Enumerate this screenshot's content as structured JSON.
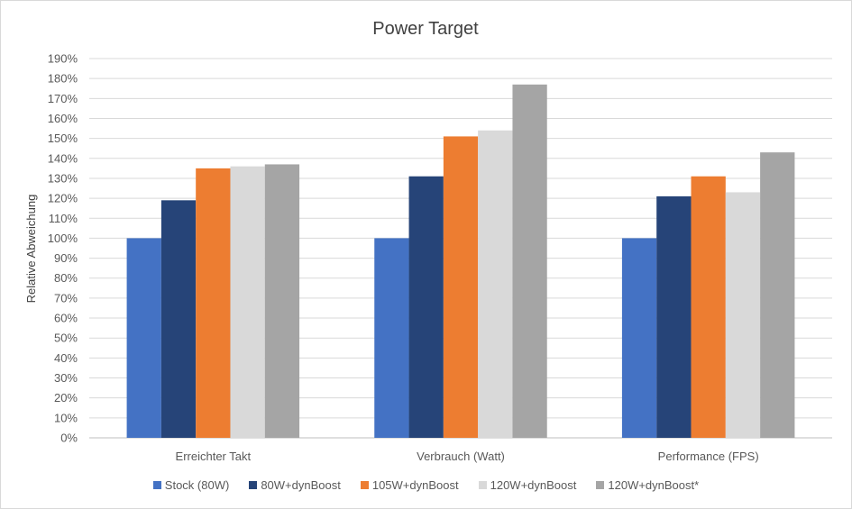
{
  "chart_data": {
    "type": "bar",
    "title": "Power Target",
    "xlabel": "",
    "ylabel": "Relative Abweichung",
    "ylim": [
      0,
      190
    ],
    "ytick_step": 10,
    "ytick_suffix": "%",
    "grid": true,
    "legend_position": "bottom",
    "categories": [
      "Erreichter Takt",
      "Verbrauch (Watt)",
      "Performance (FPS)"
    ],
    "series": [
      {
        "name": "Stock (80W)",
        "color": "#4472c4",
        "values": [
          100,
          100,
          100
        ]
      },
      {
        "name": "80W+dynBoost",
        "color": "#264478",
        "values": [
          119,
          131,
          121
        ]
      },
      {
        "name": "105W+dynBoost",
        "color": "#ed7d31",
        "values": [
          135,
          151,
          131
        ]
      },
      {
        "name": "120W+dynBoost",
        "color": "#d9d9d9",
        "values": [
          136,
          154,
          123
        ]
      },
      {
        "name": "120W+dynBoost*",
        "color": "#a5a5a5",
        "values": [
          137,
          177,
          143
        ]
      }
    ]
  }
}
